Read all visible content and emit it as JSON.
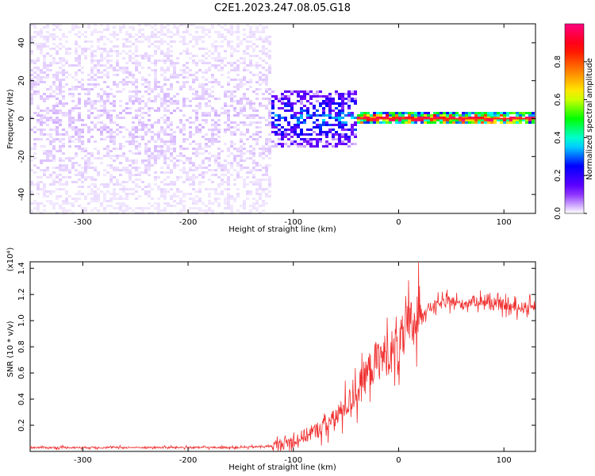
{
  "title": "C2E1.2023.247.08.05.G18",
  "colorbar": {
    "label": "Normalized spectral amplitude",
    "ticks": [
      "0.0",
      "0.2",
      "0.4",
      "0.6",
      "0.8"
    ],
    "tick_values": [
      0.0,
      0.2,
      0.4,
      0.6,
      0.8
    ],
    "range": [
      0.0,
      1.0
    ],
    "colors": [
      "#ffffff",
      "#7000ff",
      "#0000ff",
      "#00ffff",
      "#00ff00",
      "#ffff00",
      "#ff8000",
      "#ff0000",
      "#ff0080"
    ]
  },
  "chart_data": [
    {
      "type": "heatmap",
      "title": "C2E1.2023.247.08.05.G18",
      "xlabel": "Height of straight line (km)",
      "ylabel": "Frequency (Hz)",
      "xlim": [
        -350,
        130
      ],
      "ylim": [
        -50,
        50
      ],
      "xticks": [
        -300,
        -200,
        -100,
        0,
        100
      ],
      "xtick_labels": [
        "-300",
        "-200",
        "-100",
        "0",
        "100"
      ],
      "yticks": [
        -40,
        -20,
        0,
        20,
        40
      ],
      "ytick_labels": [
        "-40",
        "-20",
        "0",
        "20",
        "40"
      ],
      "regions": [
        {
          "x_range": [
            -350,
            -120
          ],
          "y_range": [
            -50,
            50
          ],
          "amplitude": 0.05
        },
        {
          "x_range": [
            -120,
            -40
          ],
          "y_range": [
            -15,
            15
          ],
          "amplitude": 0.25
        },
        {
          "x_range": [
            -40,
            130
          ],
          "y_range": [
            -3,
            3
          ],
          "amplitude": 0.9
        }
      ]
    },
    {
      "type": "line",
      "xlabel": "Height of straight line (km)",
      "ylabel": "SNR (10 * v/v)",
      "y_scale_label": "(x10⁴)",
      "xlim": [
        -350,
        130
      ],
      "ylim": [
        0,
        1.45
      ],
      "xticks": [
        -300,
        -200,
        -100,
        0,
        100
      ],
      "xtick_labels": [
        "-300",
        "-200",
        "-100",
        "0",
        "100"
      ],
      "yticks": [
        0.2,
        0.4,
        0.6,
        0.8,
        1.0,
        1.2,
        1.4
      ],
      "ytick_labels": [
        "0.2",
        "0.4",
        "0.6",
        "0.8",
        "1.0",
        "1.2",
        "1.4"
      ],
      "color": "#f03030",
      "series": [
        {
          "x": [
            -350,
            -300,
            -250,
            -200,
            -150,
            -120,
            -100,
            -80,
            -60,
            -40,
            -30,
            -20,
            -10,
            0,
            10,
            20,
            30,
            40,
            50,
            60,
            70,
            80,
            90,
            100,
            110,
            120,
            130
          ],
          "y": [
            0.03,
            0.03,
            0.03,
            0.03,
            0.03,
            0.04,
            0.08,
            0.15,
            0.25,
            0.45,
            0.6,
            0.7,
            0.75,
            0.8,
            0.95,
            1.05,
            1.1,
            1.13,
            1.15,
            1.12,
            1.15,
            1.15,
            1.12,
            1.12,
            1.1,
            1.1,
            1.12
          ]
        }
      ]
    }
  ]
}
